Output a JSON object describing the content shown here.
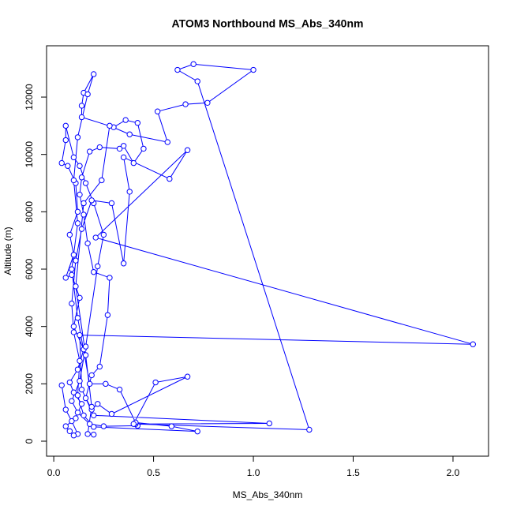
{
  "chart_data": {
    "type": "line",
    "title": "ATOM3 Northbound MS_Abs_340nm",
    "x_label": "MS_Abs_340nm",
    "y_label": "Altitude (m)",
    "color": "#0000ff",
    "marker": "circle",
    "grid": false,
    "xlim": [
      -0.036,
      2.178
    ],
    "ylim": [
      -523,
      13790
    ],
    "xticks": [
      {
        "value": 0,
        "label": "0.0"
      },
      {
        "value": 0.5,
        "label": "0.5"
      },
      {
        "value": 1,
        "label": "1.0"
      },
      {
        "value": 1.5,
        "label": "1.5"
      },
      {
        "value": 2,
        "label": "2.0"
      }
    ],
    "yticks": [
      0,
      2000,
      4000,
      6000,
      8000,
      10000,
      12000
    ],
    "x": [
      0.04,
      0.06,
      0.09,
      0.12,
      0.1,
      0.08,
      0.06,
      0.11,
      0.14,
      0.1,
      0.08,
      0.12,
      0.15,
      0.1,
      0.13,
      0.09,
      0.06,
      0.1,
      0.08,
      0.12,
      0.11,
      0.07,
      0.04,
      0.06,
      0.06,
      0.1,
      0.13,
      0.16,
      0.2,
      0.25,
      0.22,
      0.16,
      0.13,
      0.09,
      0.12,
      0.18,
      0.25,
      0.42,
      0.41,
      1.08,
      0.2,
      0.16,
      0.19,
      0.23,
      0.27,
      0.28,
      0.2,
      0.17,
      0.15,
      0.13,
      0.14,
      0.18,
      0.23,
      0.33,
      0.35,
      0.4,
      0.45,
      0.42,
      0.36,
      0.3,
      0.14,
      0.14,
      0.15,
      0.2,
      0.17,
      0.12,
      0.1,
      0.12,
      0.09,
      0.12,
      0.18,
      0.26,
      0.33,
      0.41,
      0.59,
      0.72,
      0.2,
      0.15,
      0.12,
      0.13,
      0.1,
      0.09,
      0.11,
      0.14,
      0.19,
      0.29,
      0.35,
      0.38,
      0.35,
      0.58,
      0.67,
      0.21,
      2.1,
      0.13,
      0.14,
      0.19,
      0.22,
      0.29,
      0.67,
      0.51,
      0.4,
      1.28,
      0.72,
      0.62,
      0.7,
      1.0,
      0.77,
      0.66,
      0.52,
      0.57,
      0.38,
      0.28,
      0.24,
      0.15,
      0.11,
      0.16,
      0.19,
      0.17,
      0.2
    ],
    "values": [
      1950,
      1100,
      700,
      250,
      200,
      350,
      520,
      800,
      1300,
      1700,
      2050,
      2500,
      3200,
      4000,
      5000,
      5800,
      5700,
      6500,
      7200,
      8000,
      9000,
      9600,
      9700,
      10500,
      11000,
      9900,
      9600,
      9000,
      8300,
      7200,
      6100,
      3300,
      2100,
      1400,
      1000,
      600,
      520,
      540,
      600,
      620,
      900,
      1500,
      2300,
      2600,
      4400,
      5700,
      5900,
      6900,
      7900,
      8600,
      9200,
      10100,
      10250,
      10200,
      10300,
      9700,
      10200,
      11100,
      11200,
      10950,
      11300,
      11700,
      12150,
      12800,
      12100,
      10600,
      9100,
      7600,
      6000,
      4300,
      2000,
      2000,
      1800,
      650,
      520,
      340,
      500,
      900,
      1600,
      2800,
      3800,
      4800,
      6300,
      7400,
      8400,
      8300,
      6200,
      8700,
      9900,
      9150,
      10150,
      7100,
      3380,
      3700,
      1800,
      1100,
      1300,
      950,
      2250,
      2050,
      600,
      400,
      12550,
      12950,
      13150,
      12950,
      11800,
      11750,
      11500,
      10430,
      10700,
      11000,
      9100,
      8300,
      5400,
      3000,
      1200,
      250,
      230
    ]
  }
}
